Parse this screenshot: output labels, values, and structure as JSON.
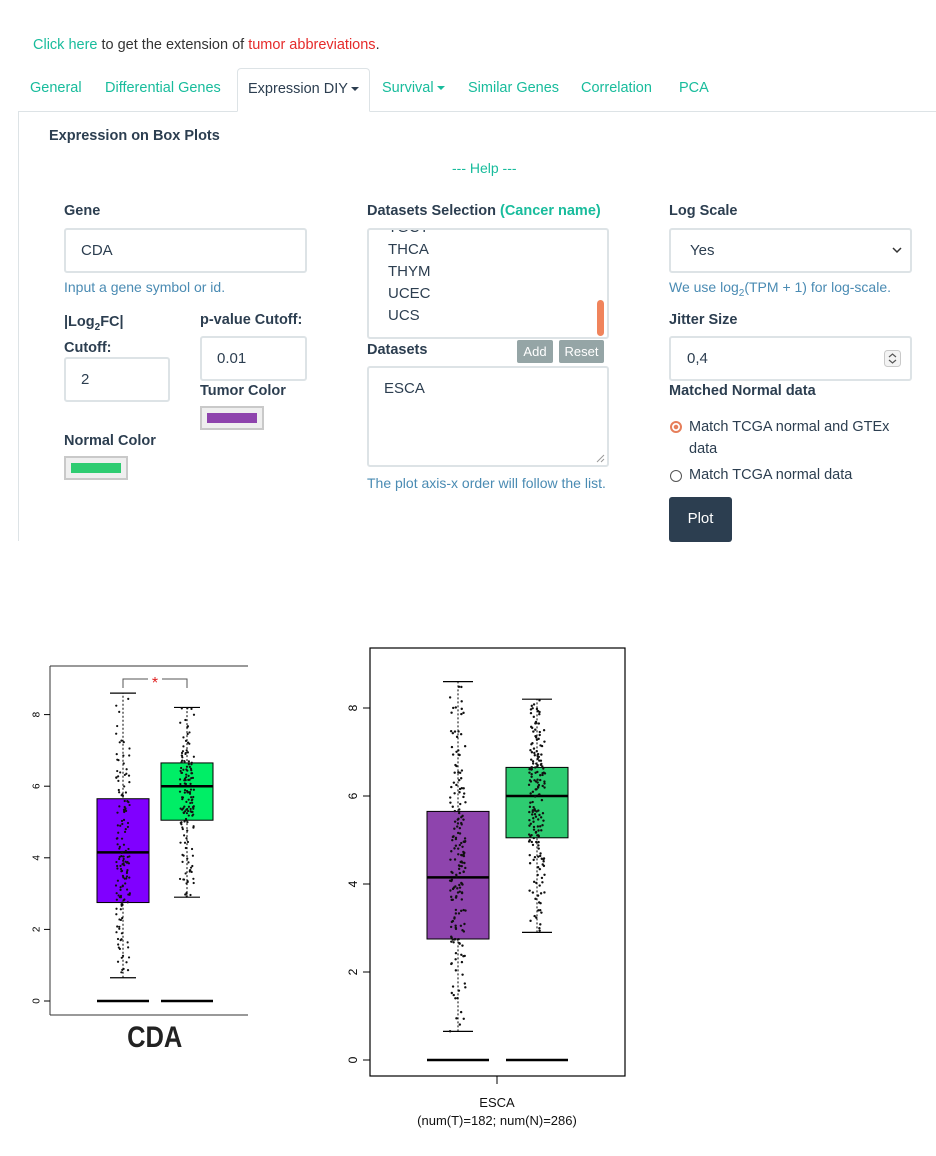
{
  "notice": {
    "link": "Click here",
    "middle": " to get the extension of ",
    "red": "tumor abbreviations",
    "end": "."
  },
  "tabs": [
    {
      "label": "General"
    },
    {
      "label": "Differential Genes"
    },
    {
      "label": "Expression DIY"
    },
    {
      "label": "Survival"
    },
    {
      "label": "Similar Genes"
    },
    {
      "label": "Correlation"
    },
    {
      "label": "PCA"
    }
  ],
  "panel": {
    "title": "Expression on Box Plots",
    "help": "--- Help ---",
    "gene": {
      "label": "Gene",
      "value": "CDA",
      "hint": "Input a gene symbol or id."
    },
    "log2fc": {
      "label_a": "|Log",
      "label_sub": "2",
      "label_b": "FC|",
      "label_c": "Cutoff:",
      "value": "2"
    },
    "pvalue": {
      "label": "p-value Cutoff:",
      "value": "0.01"
    },
    "tumor_color": {
      "label": "Tumor Color",
      "color": "#8e44ad"
    },
    "normal_color": {
      "label": "Normal Color",
      "color": "#2ecc71"
    },
    "datasets_selection": {
      "label": "Datasets Selection",
      "sub": "(Cancer name)",
      "clipped": "TGCT",
      "options": [
        "THCA",
        "THYM",
        "UCEC",
        "UCS"
      ]
    },
    "datasets": {
      "label": "Datasets",
      "add": "Add",
      "reset": "Reset",
      "value": "ESCA",
      "hint": "The plot axis-x order will follow the list."
    },
    "log_scale": {
      "label": "Log Scale",
      "value": "Yes",
      "hint_a": "We use log",
      "hint_sub": "2",
      "hint_b": "(TPM + 1) for log-scale."
    },
    "jitter": {
      "label": "Jitter Size",
      "value": "0,4"
    },
    "matched": {
      "label": "Matched Normal data",
      "options": [
        "Match TCGA normal and GTEx data",
        "Match TCGA normal data"
      ],
      "selected": 0
    },
    "plot_button": "Plot"
  },
  "chart_data": [
    {
      "type": "box",
      "title": "",
      "xlabel": "",
      "ylabel": "",
      "categories": [
        "CDA"
      ],
      "ylim": [
        0,
        9
      ],
      "yticks": [
        "0",
        "2",
        "4",
        "6",
        "8"
      ],
      "series": [
        {
          "color": "#8000ff",
          "q1": 2.75,
          "median": 4.15,
          "q3": 5.65,
          "whisker_low": 0.65,
          "whisker_high": 8.6,
          "zero_line": 0
        },
        {
          "color": "#00ee66",
          "q1": 5.05,
          "median": 6.0,
          "q3": 6.65,
          "whisker_low": 2.9,
          "whisker_high": 8.2,
          "zero_line": 0
        }
      ],
      "significance": "*"
    },
    {
      "type": "box",
      "title": "",
      "xlabel": "",
      "ylabel": "",
      "categories": [
        "ESCA"
      ],
      "category_sub": "(num(T)=182; num(N)=286)",
      "ylim": [
        0,
        9
      ],
      "yticks": [
        "0",
        "2",
        "4",
        "6",
        "8"
      ],
      "series": [
        {
          "color": "#8e44ad",
          "q1": 2.75,
          "median": 4.15,
          "q3": 5.65,
          "whisker_low": 0.65,
          "whisker_high": 8.6,
          "zero_line": 0
        },
        {
          "color": "#2ecc71",
          "q1": 5.05,
          "median": 6.0,
          "q3": 6.65,
          "whisker_low": 2.9,
          "whisker_high": 8.2,
          "zero_line": 0
        }
      ]
    }
  ]
}
